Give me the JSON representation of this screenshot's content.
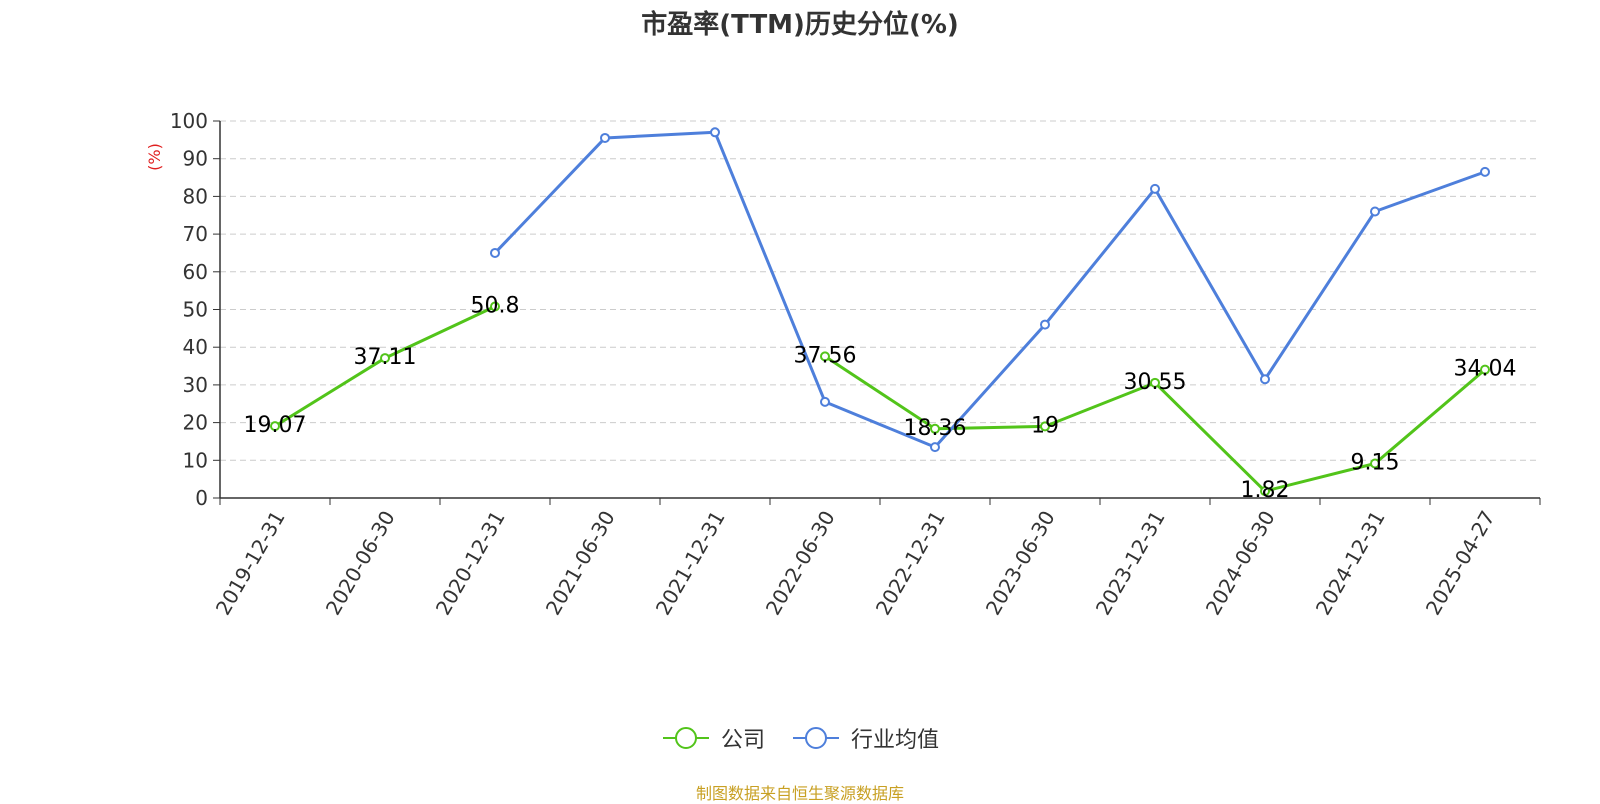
{
  "chart_data": {
    "type": "line",
    "title": "市盈率(TTM)历史分位(%)",
    "ylabel": "(%)",
    "xlabel": "",
    "ylim": [
      0,
      100
    ],
    "y_ticks": [
      0,
      10,
      20,
      30,
      40,
      50,
      60,
      70,
      80,
      90,
      100
    ],
    "grid": true,
    "legend_position": "bottom-center",
    "categories": [
      "2019-12-31",
      "2020-06-30",
      "2020-12-31",
      "2021-06-30",
      "2021-12-31",
      "2022-06-30",
      "2022-12-31",
      "2023-06-30",
      "2023-12-31",
      "2024-06-30",
      "2024-12-31",
      "2025-04-27"
    ],
    "series": [
      {
        "name": "公司",
        "color": "#52c41a",
        "show_labels": true,
        "values": [
          19.07,
          37.11,
          50.8,
          null,
          null,
          37.56,
          18.36,
          19,
          30.55,
          1.82,
          9.15,
          34.04
        ]
      },
      {
        "name": "行业均值",
        "color": "#4e7fdb",
        "show_labels": false,
        "values": [
          null,
          null,
          65,
          95.5,
          97,
          25.5,
          13.5,
          46,
          82,
          31.5,
          76,
          86.5
        ]
      }
    ]
  },
  "source_text": "制图数据来自恒生聚源数据库"
}
